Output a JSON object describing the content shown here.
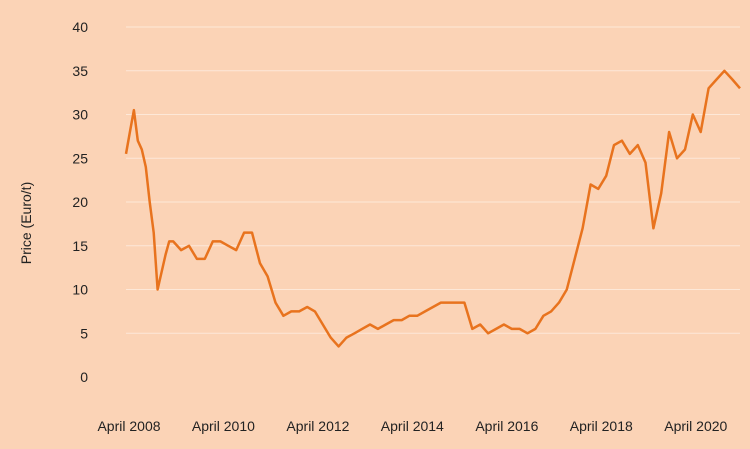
{
  "chart_data": {
    "type": "line",
    "title": "",
    "xlabel": "",
    "ylabel": "Price (Euro/t)",
    "ylim": [
      0,
      40
    ],
    "yticks": [
      0,
      5,
      10,
      15,
      20,
      25,
      30,
      35,
      40
    ],
    "xticks": [
      "April 2008",
      "April 2010",
      "April 2012",
      "April 2014",
      "April 2016",
      "April 2018",
      "April 2020"
    ],
    "xticks_dates": [
      "2008-04",
      "2010-04",
      "2012-04",
      "2014-04",
      "2016-04",
      "2018-04",
      "2020-04"
    ],
    "grid": "horizontal",
    "line_color": "#e8731e",
    "series": [
      {
        "x": [
          "2008-04",
          "2008-05",
          "2008-06",
          "2008-07",
          "2008-08",
          "2008-09",
          "2008-10",
          "2008-11",
          "2008-12",
          "2009-01",
          "2009-02",
          "2009-03",
          "2009-04",
          "2009-06",
          "2009-08",
          "2009-10",
          "2009-12",
          "2010-02",
          "2010-04",
          "2010-06",
          "2010-08",
          "2010-10",
          "2010-12",
          "2011-02",
          "2011-04",
          "2011-06",
          "2011-08",
          "2011-10",
          "2011-12",
          "2012-02",
          "2012-04",
          "2012-06",
          "2012-08",
          "2012-10",
          "2012-12",
          "2013-02",
          "2013-04",
          "2013-06",
          "2013-08",
          "2013-10",
          "2013-12",
          "2014-02",
          "2014-04",
          "2014-06",
          "2014-08",
          "2014-10",
          "2014-12",
          "2015-02",
          "2015-04",
          "2015-06",
          "2015-08",
          "2015-10",
          "2015-12",
          "2016-02",
          "2016-04",
          "2016-06",
          "2016-08",
          "2016-10",
          "2016-12",
          "2017-02",
          "2017-04",
          "2017-06",
          "2017-08",
          "2017-10",
          "2017-12",
          "2018-02",
          "2018-04",
          "2018-06",
          "2018-08",
          "2018-10",
          "2018-12",
          "2019-02",
          "2019-04",
          "2019-06",
          "2019-08",
          "2019-10",
          "2019-12",
          "2020-02",
          "2020-04",
          "2020-06",
          "2020-08",
          "2020-10",
          "2020-12",
          "2021-02",
          "2021-04"
        ],
        "y": [
          25.5,
          28,
          30.5,
          27,
          26,
          24,
          20,
          16.5,
          10,
          12,
          14,
          15.5,
          15.5,
          14.5,
          15,
          13.5,
          13.5,
          15.5,
          15.5,
          15,
          14.5,
          16.5,
          16.5,
          13,
          11.5,
          8.5,
          7,
          7.5,
          7.5,
          8,
          7.5,
          6,
          4.5,
          3.5,
          4.5,
          5,
          5.5,
          6,
          5.5,
          6,
          6.5,
          6.5,
          7,
          7,
          7.5,
          8,
          8.5,
          8.5,
          8.5,
          8.5,
          5.5,
          6,
          5,
          5.5,
          6,
          5.5,
          5.5,
          5,
          5.5,
          7,
          7.5,
          8.5,
          10,
          13.5,
          17,
          22,
          21.5,
          23,
          26.5,
          27,
          25.5,
          26.5,
          24.5,
          17,
          21,
          28,
          25,
          26,
          30,
          28,
          33,
          34,
          35,
          34,
          33
        ]
      }
    ]
  }
}
